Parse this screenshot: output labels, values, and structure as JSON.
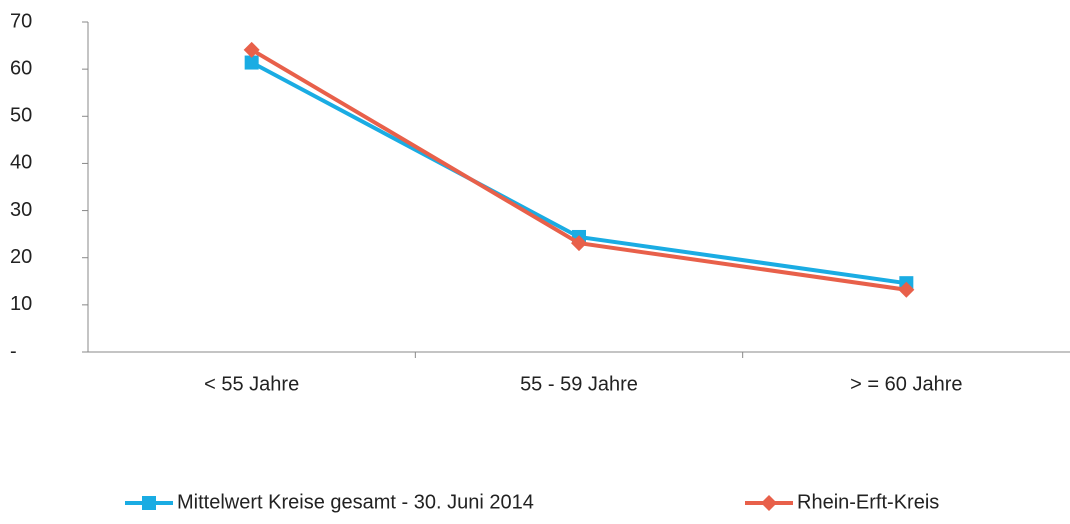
{
  "chart_data": {
    "type": "line",
    "categories": [
      "< 55 Jahre",
      "55 - 59 Jahre",
      "> = 60 Jahre"
    ],
    "series": [
      {
        "name": "Mittelwert Kreise gesamt - 30. Juni 2014",
        "color": "#1aace3",
        "marker": "square",
        "values": [
          61.4,
          24.4,
          14.6
        ]
      },
      {
        "name": "Rhein-Erft-Kreis",
        "color": "#e8604a",
        "marker": "diamond",
        "values": [
          64.1,
          23.1,
          13.2
        ]
      }
    ],
    "ylim": [
      0,
      70
    ],
    "yticks": [
      {
        "value": 0,
        "label": "-"
      },
      10,
      20,
      30,
      40,
      50,
      60,
      70
    ],
    "legend": "bottom"
  }
}
